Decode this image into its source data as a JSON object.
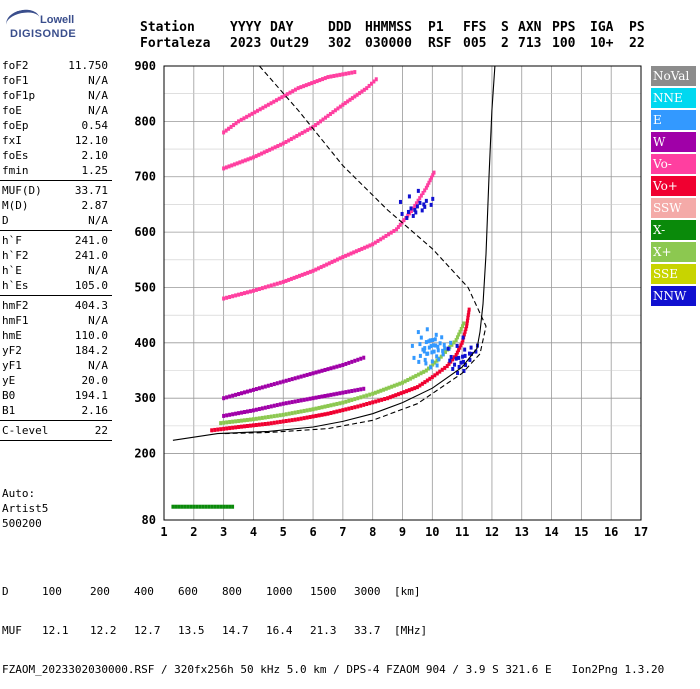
{
  "logo": {
    "line1": "Lowell",
    "line2": "DIGISONDE"
  },
  "header": {
    "labels": [
      "Station",
      "YYYY",
      "DAY",
      "DDD",
      "HHMMSS",
      "P1",
      "FFS",
      "S",
      "AXN",
      "PPS",
      "IGA",
      "PS"
    ],
    "values": [
      "Fortaleza",
      "2023",
      "Out29",
      "302",
      "030000",
      "RSF",
      "005",
      "2",
      "713",
      "100",
      "10+",
      "22"
    ]
  },
  "params": [
    {
      "group": [
        {
          "k": "foF2",
          "v": "11.750"
        },
        {
          "k": "foF1",
          "v": "N/A"
        },
        {
          "k": "foF1p",
          "v": "N/A"
        },
        {
          "k": "foE",
          "v": "N/A"
        },
        {
          "k": "foEp",
          "v": "0.54"
        },
        {
          "k": "fxI",
          "v": "12.10"
        },
        {
          "k": "foEs",
          "v": "2.10"
        },
        {
          "k": "fmin",
          "v": "1.25"
        }
      ]
    },
    {
      "group": [
        {
          "k": "MUF(D)",
          "v": "33.71"
        },
        {
          "k": "M(D)",
          "v": "2.87"
        },
        {
          "k": "D",
          "v": "N/A"
        }
      ]
    },
    {
      "group": [
        {
          "k": "h`F",
          "v": "241.0"
        },
        {
          "k": "h`F2",
          "v": "241.0"
        },
        {
          "k": "h`E",
          "v": "N/A"
        },
        {
          "k": "h`Es",
          "v": "105.0"
        }
      ]
    },
    {
      "group": [
        {
          "k": "hmF2",
          "v": "404.3"
        },
        {
          "k": "hmF1",
          "v": "N/A"
        },
        {
          "k": "hmE",
          "v": "110.0"
        },
        {
          "k": "yF2",
          "v": "184.2"
        },
        {
          "k": "yF1",
          "v": "N/A"
        },
        {
          "k": "yE",
          "v": "20.0"
        },
        {
          "k": "B0",
          "v": "194.1"
        },
        {
          "k": "B1",
          "v": "2.16"
        }
      ]
    },
    {
      "group": [
        {
          "k": "C-level",
          "v": "22"
        }
      ]
    }
  ],
  "auto": [
    "Auto:",
    "Artist5",
    "500200"
  ],
  "legend": [
    {
      "label": "NoVal",
      "color": "#8c8c8c"
    },
    {
      "label": "NNE",
      "color": "#00d8f0"
    },
    {
      "label": "E",
      "color": "#3399ff"
    },
    {
      "label": "W",
      "color": "#a000a8"
    },
    {
      "label": "Vo-",
      "color": "#ff3fa0"
    },
    {
      "label": "Vo+",
      "color": "#f00030"
    },
    {
      "label": "SSW",
      "color": "#f4aaa8"
    },
    {
      "label": "X-",
      "color": "#0a8a0a"
    },
    {
      "label": "X+",
      "color": "#8cc850"
    },
    {
      "label": "SSE",
      "color": "#c8d400"
    },
    {
      "label": "NNW",
      "color": "#1010d0"
    }
  ],
  "bottom": {
    "d_label": "D",
    "d_values": [
      "100",
      "200",
      "400",
      "600",
      "800",
      "1000",
      "1500",
      "3000",
      "[km]"
    ],
    "muf_label": "MUF",
    "muf_values": [
      "12.1",
      "12.2",
      "12.7",
      "13.5",
      "14.7",
      "16.4",
      "21.3",
      "33.7",
      "[MHz]"
    ],
    "footer": "FZAOM_2023302030000.RSF / 320fx256h 50 kHz 5.0 km / DPS-4 FZAOM 904 / 3.9 S 321.6 E   Ion2Png 1.3.20"
  },
  "chart_data": {
    "type": "scatter",
    "xlim": [
      1,
      17
    ],
    "ylim": [
      80,
      900
    ],
    "xticks": [
      1,
      2,
      3,
      4,
      5,
      6,
      7,
      8,
      9,
      10,
      11,
      12,
      13,
      14,
      15,
      16,
      17
    ],
    "yticks": [
      80,
      200,
      300,
      400,
      500,
      600,
      700,
      800,
      900
    ],
    "grid": true,
    "series": [
      {
        "kind": "trace",
        "color": "#f00030",
        "points": [
          [
            2.6,
            242
          ],
          [
            3.5,
            248
          ],
          [
            4.5,
            254
          ],
          [
            5.5,
            262
          ],
          [
            6.5,
            272
          ],
          [
            7.5,
            285
          ],
          [
            8.5,
            300
          ],
          [
            9.5,
            320
          ],
          [
            10.0,
            338
          ],
          [
            10.5,
            358
          ],
          [
            10.8,
            378
          ],
          [
            11.0,
            400
          ],
          [
            11.15,
            430
          ],
          [
            11.25,
            465
          ]
        ]
      },
      {
        "kind": "trace",
        "color": "#ff3fa0",
        "points": [
          [
            3.0,
            480
          ],
          [
            4.0,
            494
          ],
          [
            5.0,
            510
          ],
          [
            6.0,
            530
          ],
          [
            7.0,
            555
          ],
          [
            8.0,
            578
          ],
          [
            8.8,
            605
          ],
          [
            9.3,
            638
          ],
          [
            9.8,
            680
          ],
          [
            10.1,
            712
          ]
        ]
      },
      {
        "kind": "trace",
        "color": "#ff3fa0",
        "points": [
          [
            3.0,
            715
          ],
          [
            4.0,
            735
          ],
          [
            5.0,
            760
          ],
          [
            6.0,
            790
          ],
          [
            7.0,
            830
          ],
          [
            7.8,
            860
          ],
          [
            8.2,
            880
          ]
        ]
      },
      {
        "kind": "trace",
        "color": "#ff3fa0",
        "points": [
          [
            3.0,
            780
          ],
          [
            3.5,
            800
          ],
          [
            4.5,
            830
          ],
          [
            5.5,
            860
          ],
          [
            6.5,
            880
          ],
          [
            7.5,
            890
          ]
        ]
      },
      {
        "kind": "trace",
        "color": "#a000a8",
        "points": [
          [
            3.0,
            300
          ],
          [
            4.0,
            315
          ],
          [
            5.0,
            330
          ],
          [
            6.0,
            345
          ],
          [
            7.0,
            360
          ],
          [
            7.8,
            375
          ]
        ]
      },
      {
        "kind": "trace",
        "color": "#a000a8",
        "points": [
          [
            3.0,
            268
          ],
          [
            4.0,
            278
          ],
          [
            5.0,
            290
          ],
          [
            6.0,
            300
          ],
          [
            7.0,
            310
          ],
          [
            7.8,
            318
          ]
        ]
      },
      {
        "kind": "trace",
        "color": "#0a8a0a",
        "points": [
          [
            1.3,
            104
          ],
          [
            2.0,
            104
          ],
          [
            2.6,
            104
          ],
          [
            3.4,
            104
          ]
        ]
      },
      {
        "kind": "trace",
        "color": "#8cc850",
        "points": [
          [
            2.9,
            255
          ],
          [
            4,
            262
          ],
          [
            5,
            270
          ],
          [
            6,
            280
          ],
          [
            7,
            292
          ],
          [
            8,
            308
          ],
          [
            9,
            328
          ],
          [
            9.8,
            350
          ],
          [
            10.3,
            375
          ],
          [
            10.8,
            405
          ],
          [
            11.1,
            440
          ]
        ]
      },
      {
        "kind": "cluster",
        "color": "#3399ff",
        "points": [
          [
            9.6,
            380
          ],
          [
            9.9,
            395
          ],
          [
            10.2,
            390
          ],
          [
            10.0,
            370
          ],
          [
            9.8,
            405
          ],
          [
            10.4,
            400
          ],
          [
            10.1,
            410
          ]
        ]
      },
      {
        "kind": "cluster",
        "color": "#1010d0",
        "points": [
          [
            10.8,
            375
          ],
          [
            11.1,
            380
          ],
          [
            11.3,
            395
          ],
          [
            10.9,
            360
          ],
          [
            9.2,
            640
          ],
          [
            9.5,
            650
          ],
          [
            9.8,
            660
          ]
        ]
      }
    ],
    "profile_solid": [
      [
        1.3,
        224
      ],
      [
        2.8,
        236
      ],
      [
        4.5,
        240
      ],
      [
        6.0,
        248
      ],
      [
        7.0,
        258
      ],
      [
        8.0,
        272
      ],
      [
        9.0,
        292
      ],
      [
        10.0,
        318
      ],
      [
        11.0,
        356
      ],
      [
        11.5,
        390
      ],
      [
        11.6,
        420
      ],
      [
        11.7,
        470
      ],
      [
        11.8,
        560
      ],
      [
        11.9,
        700
      ],
      [
        12.0,
        820
      ],
      [
        12.1,
        900
      ]
    ],
    "profile_dashed": [
      [
        4.2,
        900
      ],
      [
        5.5,
        820
      ],
      [
        7.0,
        720
      ],
      [
        8.5,
        640
      ],
      [
        10.0,
        570
      ],
      [
        11.2,
        500
      ],
      [
        11.8,
        430
      ],
      [
        11.6,
        380
      ],
      [
        11.0,
        345
      ],
      [
        9.5,
        290
      ],
      [
        8.0,
        260
      ],
      [
        6.5,
        245
      ],
      [
        4.5,
        238
      ],
      [
        3.0,
        236
      ]
    ]
  }
}
